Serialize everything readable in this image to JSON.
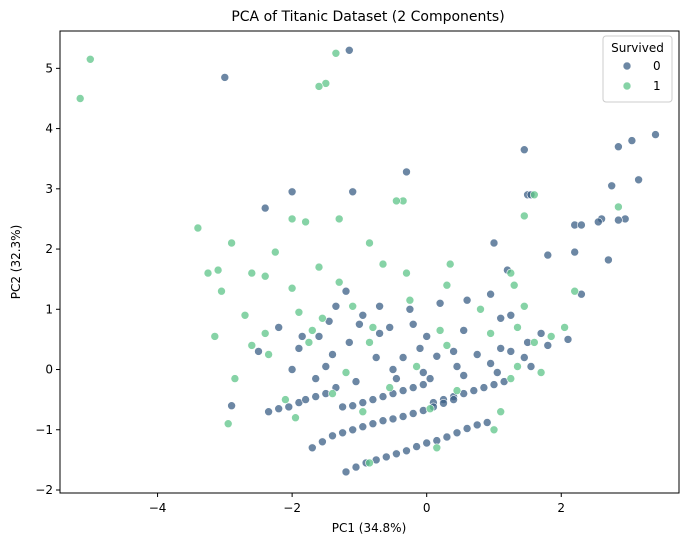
{
  "chart_data": {
    "type": "scatter",
    "title": "PCA of Titanic Dataset (2 Components)",
    "xlabel": "PC1 (34.8%)",
    "ylabel": "PC2 (32.3%)",
    "xlim": [
      -5.45,
      3.75
    ],
    "ylim": [
      -2.05,
      5.62
    ],
    "x_ticks": [
      -4,
      -2,
      0,
      2
    ],
    "y_ticks": [
      -2,
      -1,
      0,
      1,
      2,
      3,
      4,
      5
    ],
    "grid": false,
    "legend": {
      "title": "Survived",
      "placement": "top-right"
    },
    "series": [
      {
        "name": "0",
        "color": "#3b5f85",
        "points": [
          [
            -3.0,
            4.85
          ],
          [
            -1.15,
            5.3
          ],
          [
            -2.4,
            2.68
          ],
          [
            -2.0,
            2.95
          ],
          [
            -1.1,
            2.95
          ],
          [
            -0.3,
            3.28
          ],
          [
            1.45,
            3.65
          ],
          [
            2.85,
            3.7
          ],
          [
            3.05,
            3.8
          ],
          [
            3.4,
            3.9
          ],
          [
            2.75,
            3.05
          ],
          [
            3.15,
            3.15
          ],
          [
            2.2,
            2.4
          ],
          [
            2.6,
            2.5
          ],
          [
            2.95,
            2.5
          ],
          [
            1.5,
            2.9
          ],
          [
            1.55,
            2.9
          ],
          [
            1.0,
            2.1
          ],
          [
            1.8,
            1.9
          ],
          [
            2.2,
            1.95
          ],
          [
            2.7,
            1.82
          ],
          [
            1.2,
            1.65
          ],
          [
            2.3,
            1.25
          ],
          [
            -1.2,
            1.3
          ],
          [
            -1.35,
            1.05
          ],
          [
            -0.7,
            1.05
          ],
          [
            -0.25,
            1.0
          ],
          [
            0.2,
            1.1
          ],
          [
            0.6,
            1.15
          ],
          [
            0.95,
            1.25
          ],
          [
            1.1,
            0.85
          ],
          [
            1.25,
            0.9
          ],
          [
            -0.55,
            0.7
          ],
          [
            -0.2,
            0.75
          ],
          [
            0.55,
            0.65
          ],
          [
            1.7,
            0.6
          ],
          [
            -2.2,
            0.7
          ],
          [
            -1.6,
            0.55
          ],
          [
            -1.15,
            0.45
          ],
          [
            -0.1,
            0.35
          ],
          [
            0.4,
            0.3
          ],
          [
            1.1,
            0.35
          ],
          [
            1.5,
            0.45
          ],
          [
            2.1,
            0.5
          ],
          [
            -2.5,
            0.3
          ],
          [
            -1.9,
            0.35
          ],
          [
            -1.4,
            0.25
          ],
          [
            -0.75,
            0.2
          ],
          [
            -0.35,
            0.2
          ],
          [
            0.15,
            0.22
          ],
          [
            0.75,
            0.25
          ],
          [
            1.25,
            0.3
          ],
          [
            1.8,
            0.4
          ],
          [
            -2.0,
            0.0
          ],
          [
            -1.5,
            0.05
          ],
          [
            -0.5,
            0.0
          ],
          [
            -0.05,
            -0.05
          ],
          [
            0.45,
            0.05
          ],
          [
            0.95,
            0.1
          ],
          [
            1.45,
            0.2
          ],
          [
            -1.65,
            -0.15
          ],
          [
            -1.05,
            -0.2
          ],
          [
            -0.45,
            -0.15
          ],
          [
            0.05,
            -0.15
          ],
          [
            0.55,
            -0.1
          ],
          [
            1.05,
            -0.05
          ],
          [
            1.55,
            0.05
          ],
          [
            -2.9,
            -0.6
          ],
          [
            -2.35,
            -0.7
          ],
          [
            -2.2,
            -0.65
          ],
          [
            -2.05,
            -0.62
          ],
          [
            -1.9,
            -0.55
          ],
          [
            -1.8,
            -0.5
          ],
          [
            -1.65,
            -0.45
          ],
          [
            -1.5,
            -0.4
          ],
          [
            -1.35,
            -0.3
          ],
          [
            -1.25,
            -0.62
          ],
          [
            -1.1,
            -0.6
          ],
          [
            -0.95,
            -0.55
          ],
          [
            -0.8,
            -0.5
          ],
          [
            -0.65,
            -0.45
          ],
          [
            -0.5,
            -0.4
          ],
          [
            -0.35,
            -0.35
          ],
          [
            -0.2,
            -0.3
          ],
          [
            -0.05,
            -0.25
          ],
          [
            0.1,
            -0.55
          ],
          [
            0.25,
            -0.5
          ],
          [
            0.4,
            -0.45
          ],
          [
            0.55,
            -0.4
          ],
          [
            0.7,
            -0.35
          ],
          [
            0.85,
            -0.3
          ],
          [
            1.0,
            -0.25
          ],
          [
            1.15,
            -0.2
          ],
          [
            -1.7,
            -1.3
          ],
          [
            -1.55,
            -1.2
          ],
          [
            -1.4,
            -1.1
          ],
          [
            -1.25,
            -1.05
          ],
          [
            -1.1,
            -1.0
          ],
          [
            -0.95,
            -0.95
          ],
          [
            -0.8,
            -0.9
          ],
          [
            -0.65,
            -0.85
          ],
          [
            -0.5,
            -0.82
          ],
          [
            -0.35,
            -0.78
          ],
          [
            -0.2,
            -0.73
          ],
          [
            -0.05,
            -0.68
          ],
          [
            0.1,
            -0.62
          ],
          [
            0.25,
            -0.56
          ],
          [
            0.4,
            -0.5
          ],
          [
            -1.2,
            -1.7
          ],
          [
            -1.05,
            -1.62
          ],
          [
            -0.9,
            -1.55
          ],
          [
            -0.75,
            -1.5
          ],
          [
            -0.6,
            -1.45
          ],
          [
            -0.45,
            -1.4
          ],
          [
            -0.3,
            -1.35
          ],
          [
            -0.15,
            -1.28
          ],
          [
            0.0,
            -1.22
          ],
          [
            0.15,
            -1.18
          ],
          [
            0.3,
            -1.12
          ],
          [
            0.45,
            -1.05
          ],
          [
            0.6,
            -0.98
          ],
          [
            0.75,
            -0.92
          ],
          [
            0.9,
            -0.88
          ],
          [
            2.3,
            2.4
          ],
          [
            2.55,
            2.45
          ],
          [
            2.85,
            2.48
          ],
          [
            -0.7,
            0.6
          ],
          [
            -1.0,
            0.75
          ],
          [
            0.0,
            0.55
          ],
          [
            -1.85,
            0.55
          ],
          [
            -1.45,
            0.8
          ],
          [
            -0.95,
            0.9
          ]
        ]
      },
      {
        "name": "1",
        "color": "#5ec488",
        "points": [
          [
            -5.15,
            4.5
          ],
          [
            -5.0,
            5.15
          ],
          [
            -1.35,
            5.25
          ],
          [
            -1.5,
            4.75
          ],
          [
            -1.6,
            4.7
          ],
          [
            -0.35,
            2.8
          ],
          [
            -0.45,
            2.8
          ],
          [
            -1.3,
            2.5
          ],
          [
            -1.8,
            2.45
          ],
          [
            -2.0,
            2.5
          ],
          [
            -3.4,
            2.35
          ],
          [
            -2.9,
            2.1
          ],
          [
            -0.85,
            2.1
          ],
          [
            -2.25,
            1.95
          ],
          [
            -3.1,
            1.65
          ],
          [
            -3.25,
            1.6
          ],
          [
            -2.6,
            1.6
          ],
          [
            -2.4,
            1.55
          ],
          [
            -1.6,
            1.7
          ],
          [
            -0.65,
            1.75
          ],
          [
            0.35,
            1.75
          ],
          [
            1.25,
            1.6
          ],
          [
            1.45,
            2.55
          ],
          [
            1.6,
            2.9
          ],
          [
            2.85,
            2.7
          ],
          [
            2.2,
            1.3
          ],
          [
            -3.05,
            1.3
          ],
          [
            -2.0,
            1.35
          ],
          [
            -1.3,
            1.45
          ],
          [
            -0.3,
            1.6
          ],
          [
            0.3,
            1.4
          ],
          [
            1.3,
            1.4
          ],
          [
            -2.7,
            0.9
          ],
          [
            -1.9,
            0.95
          ],
          [
            -1.1,
            1.05
          ],
          [
            0.8,
            1.0
          ],
          [
            1.45,
            1.05
          ],
          [
            -3.15,
            0.55
          ],
          [
            -2.4,
            0.6
          ],
          [
            -1.7,
            0.65
          ],
          [
            -0.8,
            0.7
          ],
          [
            0.2,
            0.65
          ],
          [
            1.35,
            0.7
          ],
          [
            2.05,
            0.7
          ],
          [
            -2.6,
            0.4
          ],
          [
            -1.75,
            0.45
          ],
          [
            -0.85,
            0.45
          ],
          [
            0.3,
            0.4
          ],
          [
            1.6,
            0.45
          ],
          [
            -2.85,
            -0.15
          ],
          [
            -1.2,
            -0.05
          ],
          [
            -0.15,
            0.05
          ],
          [
            1.35,
            0.05
          ],
          [
            -2.1,
            -0.5
          ],
          [
            -1.4,
            -0.4
          ],
          [
            -0.55,
            -0.3
          ],
          [
            0.45,
            -0.35
          ],
          [
            1.25,
            -0.15
          ],
          [
            -2.95,
            -0.9
          ],
          [
            -1.95,
            -0.8
          ],
          [
            -0.95,
            -0.7
          ],
          [
            0.05,
            -0.65
          ],
          [
            1.1,
            -0.7
          ],
          [
            -0.85,
            -1.55
          ],
          [
            0.15,
            -1.3
          ],
          [
            1.0,
            -1.0
          ],
          [
            1.7,
            -0.05
          ],
          [
            -0.25,
            1.15
          ],
          [
            -1.55,
            0.85
          ],
          [
            -2.35,
            0.25
          ],
          [
            0.95,
            0.6
          ],
          [
            1.85,
            0.55
          ]
        ]
      }
    ]
  }
}
